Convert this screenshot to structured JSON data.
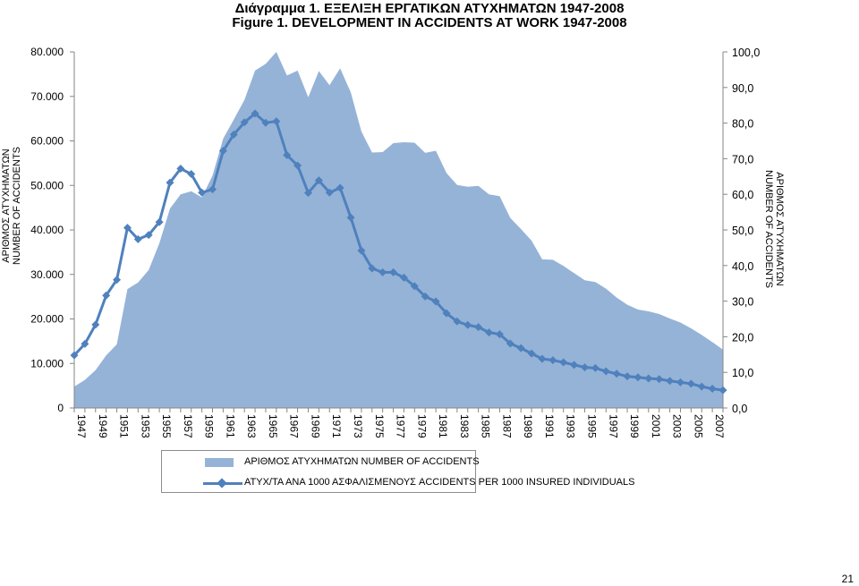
{
  "titles": {
    "greek": "Διάγραμμα 1. ΕΞΕΛΙΞΗ ΕΡΓΑΤΙΚΩΝ ΑΤΥΧΗΜΑΤΩΝ 1947-2008",
    "english": "Figure  1. DEVELOPMENT IN ACCIDENTS AT WORK 1947-2008"
  },
  "page_number": "21",
  "colors": {
    "area": "#95b3d7",
    "line": "#4f81bd",
    "axis": "#868686"
  },
  "chart_data": {
    "type": "area+line",
    "title": "Figure  1. DEVELOPMENT IN ACCIDENTS AT WORK 1947-2008",
    "ylabel_left": [
      "ΑΡΙΘΜΟΣ ΑΤΥΧΗΜΑΤΩΝ",
      "NUMBER OF ACCIDENTS"
    ],
    "ylabel_right": [
      "ΑΡΙΘΜΟΣ ΑΤΥΧΗΜΑΤΩΝ",
      "NUMBER OF ACCIDENTS"
    ],
    "ylim_left": [
      0,
      80000
    ],
    "ylim_right": [
      0,
      100
    ],
    "left_ticks": [
      "0",
      "10.000",
      "20.000",
      "30.000",
      "40.000",
      "50.000",
      "60.000",
      "70.000",
      "80.000"
    ],
    "right_ticks": [
      "0,0",
      "10,0",
      "20,0",
      "30,0",
      "40,0",
      "50,0",
      "60,0",
      "70,0",
      "80,0",
      "90,0",
      "100,0"
    ],
    "x_tick_labels": [
      "1947",
      "1949",
      "1951",
      "1953",
      "1955",
      "1957",
      "1959",
      "1961",
      "1963",
      "1965",
      "1967",
      "1969",
      "1971",
      "1973",
      "1975",
      "1977",
      "1979",
      "1981",
      "1983",
      "1985",
      "1987",
      "1989",
      "1991",
      "1993",
      "1995",
      "1997",
      "1999",
      "2001",
      "2003",
      "2005",
      "2007"
    ],
    "legend_position": "bottom",
    "x": [
      1947,
      1948,
      1949,
      1950,
      1951,
      1952,
      1953,
      1954,
      1955,
      1956,
      1957,
      1958,
      1959,
      1960,
      1961,
      1962,
      1963,
      1964,
      1965,
      1966,
      1967,
      1968,
      1969,
      1970,
      1971,
      1972,
      1973,
      1974,
      1975,
      1976,
      1977,
      1978,
      1979,
      1980,
      1981,
      1982,
      1983,
      1984,
      1985,
      1986,
      1987,
      1988,
      1989,
      1990,
      1991,
      1992,
      1993,
      1994,
      1995,
      1996,
      1997,
      1998,
      1999,
      2000,
      2001,
      2002,
      2003,
      2004,
      2005,
      2006,
      2007,
      2008
    ],
    "series": [
      {
        "name": "ΑΡΙΘΜΟΣ ΑΤΥΧΗΜΑΤΩΝ  NUMBER OF ACCIDENTS",
        "axis": "left",
        "style": "area",
        "values": [
          4800,
          6300,
          8500,
          11800,
          14300,
          26700,
          28200,
          31000,
          37000,
          44800,
          48000,
          48700,
          47300,
          52200,
          60500,
          64800,
          69200,
          75800,
          77300,
          80000,
          74700,
          75800,
          69800,
          75700,
          72500,
          76300,
          70900,
          62100,
          57400,
          57500,
          59500,
          59700,
          59600,
          57300,
          57800,
          52800,
          50100,
          49700,
          49900,
          48000,
          47600,
          42700,
          40200,
          37600,
          33400,
          33300,
          31900,
          30300,
          28700,
          28300,
          26800,
          24800,
          23200,
          22100,
          21700,
          21100,
          20100,
          19200,
          17900,
          16400,
          14800,
          13100
        ]
      },
      {
        "name": "ΑΤΥΧ/ΤΑ ΑΝΑ 1000 ΑΣΦΑΛΙΣΜΕΝΟΥΣ  ACCIDENTS PER 1000 INSURED INDIVIDUALS",
        "axis": "right",
        "style": "line-diamond",
        "values": [
          14.8,
          18.0,
          23.4,
          31.6,
          36.0,
          50.6,
          47.4,
          48.6,
          52.2,
          63.3,
          67.2,
          65.7,
          60.5,
          61.4,
          72.2,
          76.8,
          80.2,
          82.7,
          80.1,
          80.5,
          71.0,
          68.1,
          60.4,
          63.9,
          60.5,
          61.8,
          53.5,
          44.2,
          39.2,
          38.1,
          38.1,
          36.6,
          34.2,
          31.3,
          29.9,
          26.6,
          24.3,
          23.3,
          22.7,
          21.2,
          20.7,
          18.1,
          16.8,
          15.3,
          13.8,
          13.4,
          12.8,
          12.1,
          11.4,
          11.2,
          10.3,
          9.6,
          8.9,
          8.6,
          8.3,
          8.1,
          7.6,
          7.2,
          6.8,
          6.0,
          5.4,
          5.0
        ]
      }
    ]
  }
}
